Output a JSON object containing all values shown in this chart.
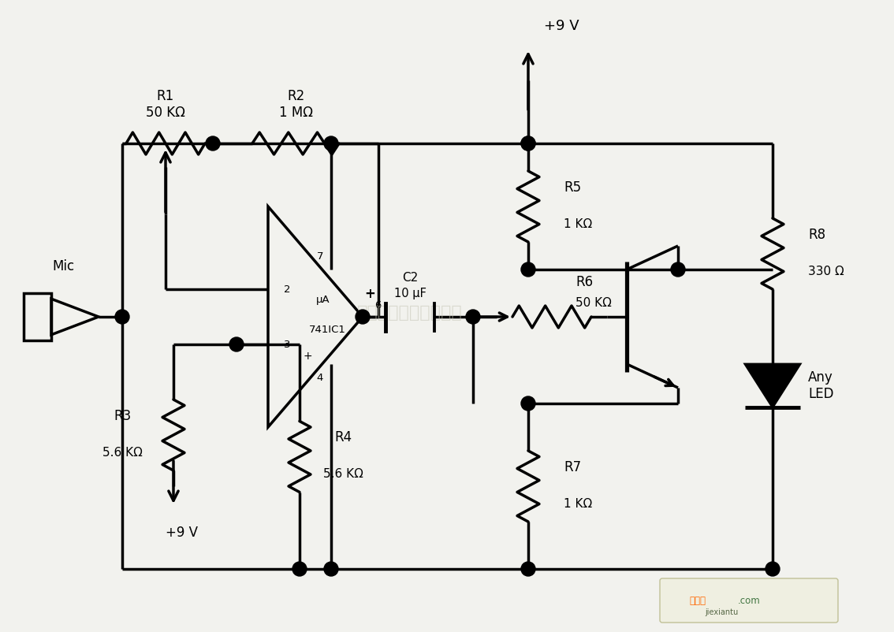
{
  "bg_color": "#f2f2ee",
  "line_color": "#000000",
  "lw": 2.5,
  "watermark": "杭州将审科技有限公司",
  "labels": {
    "R1": "R1\n50 KΩ",
    "R2": "R2\n1 MΩ",
    "R3": "R3\n5.6 KΩ",
    "R4": "R4\n5.6 KΩ",
    "R5": "R5\n1 KΩ",
    "R6": "R6\n50 KΩ",
    "R7": "R7\n1 KΩ",
    "R8": "R8\n330 Ω",
    "C2": "C2\n10 μF",
    "mic": "Mic",
    "opamp": "μA\n741IC1",
    "led": "Any\nLED",
    "v9_top": "+9 V",
    "v9_bot": "+9 V"
  }
}
